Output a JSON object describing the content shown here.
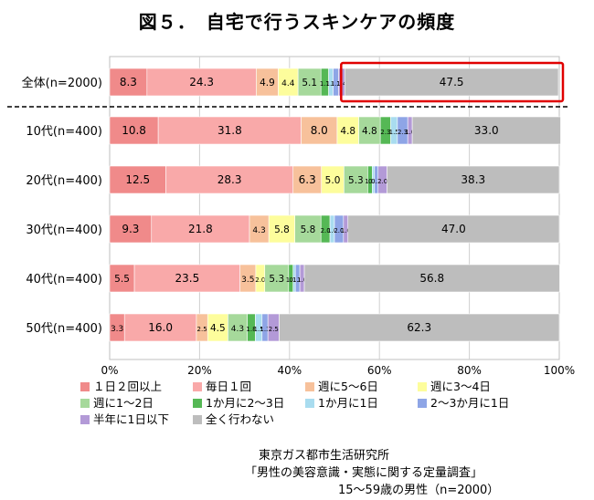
{
  "title": "図５．　自宅で行うスキンケアの頻度",
  "chart_data": {
    "type": "bar",
    "orientation": "horizontal-stacked-100",
    "categories": [
      "全体(n=2000)",
      "10代(n=400)",
      "20代(n=400)",
      "30代(n=400)",
      "40代(n=400)",
      "50代(n=400)"
    ],
    "series": [
      {
        "name": "１日２回以上",
        "color": "#f08a8a",
        "values": [
          8.3,
          10.8,
          12.5,
          9.3,
          5.5,
          3.3
        ]
      },
      {
        "name": "毎日１回",
        "color": "#f9a9a9",
        "values": [
          24.3,
          31.8,
          28.3,
          21.8,
          23.5,
          16.0
        ]
      },
      {
        "name": "週に5～6日",
        "color": "#f7c19b",
        "values": [
          4.9,
          8.0,
          6.3,
          4.3,
          3.5,
          2.5
        ]
      },
      {
        "name": "週に3～4日",
        "color": "#fdfd9c",
        "values": [
          4.4,
          4.8,
          5.0,
          5.8,
          2.0,
          4.5
        ]
      },
      {
        "name": "週に1～2日",
        "color": "#a6d99b",
        "values": [
          5.1,
          4.8,
          5.3,
          5.8,
          5.3,
          4.3
        ]
      },
      {
        "name": "1か月に2～3日",
        "color": "#55b855",
        "values": [
          1.7,
          2.3,
          1.0,
          2.0,
          1.0,
          1.8
        ]
      },
      {
        "name": "1か月に1日",
        "color": "#a9dcef",
        "values": [
          1.0,
          1.5,
          0.5,
          1.0,
          0.5,
          1.5
        ]
      },
      {
        "name": "2～3か月に1日",
        "color": "#8ea5e6",
        "values": [
          1.2,
          2.3,
          0.8,
          2.0,
          1.0,
          1.3
        ]
      },
      {
        "name": "半年に1日以下",
        "color": "#b39ad7",
        "values": [
          1.4,
          1.0,
          2.0,
          1.0,
          1.0,
          2.5
        ]
      },
      {
        "name": "全く行わない",
        "color": "#bdbdbd",
        "values": [
          47.5,
          33.0,
          38.3,
          47.0,
          56.8,
          62.3
        ]
      }
    ],
    "data_labels": [
      [
        "8.3",
        "24.3",
        "4.9",
        "4.4",
        "5.1",
        "1.7",
        "1.0",
        "1.2",
        "1.4",
        "47.5"
      ],
      [
        "10.8",
        "31.8",
        "8.0",
        "4.8",
        "4.8",
        "2.3",
        "1.5",
        "2.3",
        "1.0",
        "33.0"
      ],
      [
        "12.5",
        "28.3",
        "6.3",
        "5.0",
        "5.3",
        "1.0",
        "0.5",
        "0.8",
        "2.0",
        "38.3"
      ],
      [
        "9.3",
        "21.8",
        "4.3",
        "5.8",
        "5.8",
        "2.0",
        "1.0",
        "2.0",
        "1.0",
        "47.0"
      ],
      [
        "5.5",
        "23.5",
        "3.5",
        "2.0",
        "5.3",
        "1.0",
        "0.5",
        "1.0",
        "1.0",
        "56.8"
      ],
      [
        "3.3",
        "16.0",
        "2.5",
        "4.5",
        "4.3",
        "1.8",
        "1.5",
        "1.3",
        "2.5",
        "62.3"
      ]
    ],
    "x_ticks": [
      "0%",
      "20%",
      "40%",
      "60%",
      "80%",
      "100%"
    ],
    "xlim": [
      0,
      100
    ],
    "grid": true,
    "legend_position": "bottom",
    "highlight": "red box around 全く行わない segment of 全体 row"
  },
  "source": {
    "line1": "東京ガス都市生活研究所",
    "line2": "「男性の美容意識・実態に関する定量調査」",
    "line3": "15～59歳の男性（n=2000）"
  }
}
